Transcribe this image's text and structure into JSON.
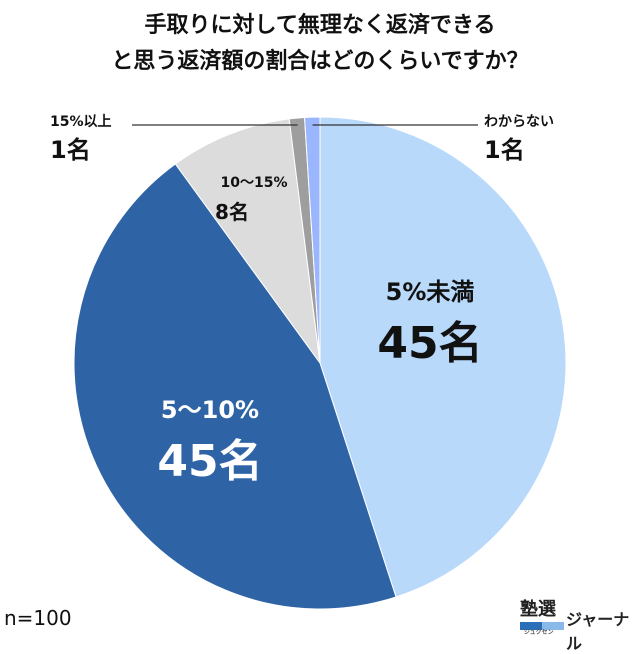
{
  "title_lines": [
    "手取りに対して無理なく返済できる",
    "と思う返済額の割合はどのくらいですか？"
  ],
  "sample_size": "n=100",
  "brand": {
    "mark": "塾選",
    "mark_sub": "ジュクセン",
    "text": "ジャーナル"
  },
  "colors": {
    "lt5": "#b9d9fb",
    "5to10": "#2e63a6",
    "10to15": "#dcdcdc",
    "gt15": "#9e9e9e",
    "unknown": "#99b6ff"
  },
  "chart_data": {
    "type": "pie",
    "title": "手取りに対して無理なく返済できると思う返済額の割合はどのくらいですか？",
    "unit": "名",
    "slices": [
      {
        "label": "5%未満",
        "value": 45,
        "value_label": "45名",
        "color": "#b9d9fb"
      },
      {
        "label": "5〜10%",
        "value": 45,
        "value_label": "45名",
        "color": "#2e63a6"
      },
      {
        "label": "10〜15%",
        "value": 8,
        "value_label": "8名",
        "color": "#dcdcdc"
      },
      {
        "label": "15%以上",
        "value": 1,
        "value_label": "1名",
        "color": "#9e9e9e"
      },
      {
        "label": "わからない",
        "value": 1,
        "value_label": "1名",
        "color": "#99b6ff"
      }
    ]
  }
}
